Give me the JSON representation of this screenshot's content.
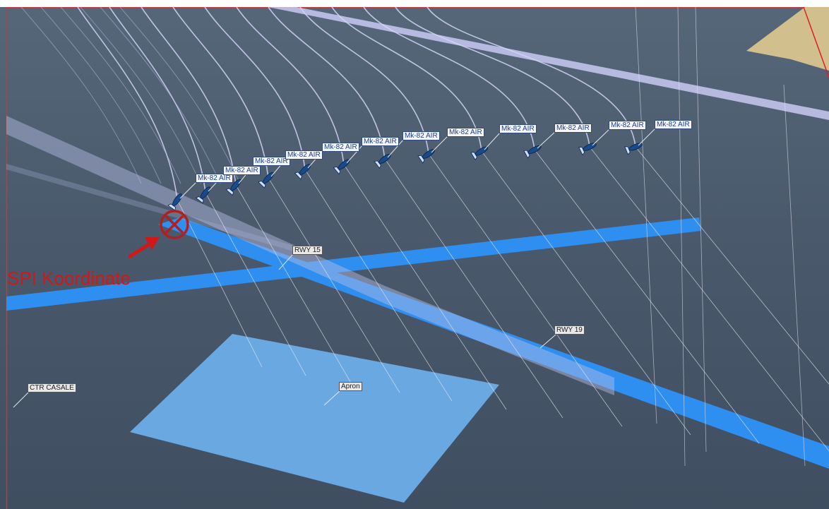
{
  "map_labels": {
    "rwy15": "RWY 15",
    "rwy19": "RWY 19",
    "ctr": "CTR CASALE",
    "apron": "Apron"
  },
  "weapons": {
    "label": "Mk-82 AIR",
    "labels": [
      "Mk-82 AIR",
      "Mk-82 AIR",
      "Mk-82 AIR",
      "Mk-82 AIR",
      "Mk-82 AIR",
      "Mk-82 AIR",
      "Mk-82 AIR",
      "Mk-82 AIR",
      "Mk-82 AIR",
      "Mk-82 AIR",
      "Mk-82 AIR",
      "Mk-82 AIR",
      "Mk-82 AIR"
    ]
  },
  "annotation": {
    "spi_text": "SPI Koordinate",
    "color": "#d01818"
  },
  "colors": {
    "terrain": "#4a5a6c",
    "runway": "#2e8ff0",
    "apron": "#6aa8e2",
    "trajectory": "#c9c9f2",
    "field": "#d9c48f",
    "border": "#c23a3a"
  }
}
